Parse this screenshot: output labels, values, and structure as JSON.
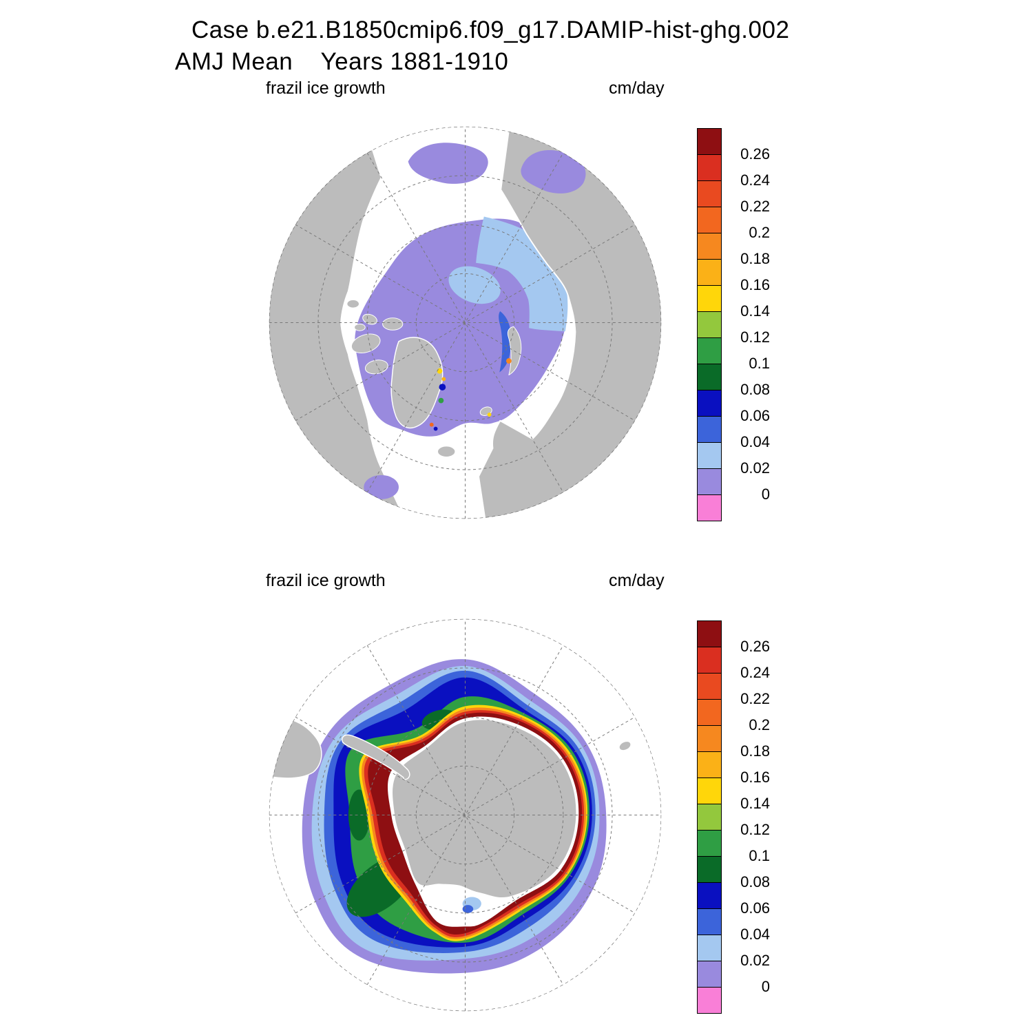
{
  "header": {
    "line1": "Case b.e21.B1850cmip6.f09_g17.DAMIP-hist-ghg.002",
    "line2": "AMJ Mean    Years 1881-1910"
  },
  "panels": {
    "north": {
      "variable_label": "frazil ice growth",
      "units_label": "cm/day"
    },
    "south": {
      "variable_label": "frazil ice growth",
      "units_label": "cm/day"
    }
  },
  "colorbar": {
    "units": "cm/day",
    "cells": [
      "v026",
      "v024",
      "v022",
      "v020",
      "v018",
      "v016",
      "v014",
      "v012",
      "v010",
      "v008",
      "v006",
      "v004",
      "v002",
      "v000",
      "below"
    ],
    "ticks": [
      "0.26",
      "0.24",
      "0.22",
      "0.2",
      "0.18",
      "0.16",
      "0.14",
      "0.12",
      "0.1",
      "0.08",
      "0.06",
      "0.04",
      "0.02",
      "0"
    ]
  },
  "palette": {
    "below": "#f97fd7",
    "v000": "#998ade",
    "v002": "#a4c8f0",
    "v004": "#3c64da",
    "v006": "#0a10c0",
    "v008": "#0a6b28",
    "v010": "#2f9e44",
    "v012": "#93c83d",
    "v014": "#ffd60a",
    "v016": "#fbb117",
    "v018": "#f6881f",
    "v020": "#f2671f",
    "v022": "#e94a20",
    "v024": "#da2f20",
    "v026": "#8e0f12",
    "land": "#bcbcbc",
    "coast": "#ffffff",
    "ocean": "#ffffff",
    "graticule": "#787878"
  },
  "chart_data": [
    {
      "type": "heatmap",
      "title": "frazil ice growth",
      "units": "cm/day",
      "hemisphere": "Northern",
      "projection": "north polar stereographic",
      "season": "AMJ",
      "years": "1881-1910",
      "case": "b.e21.B1850cmip6.f09_g17.DAMIP-hist-ghg.002",
      "contour_levels": [
        0,
        0.02,
        0.04,
        0.06,
        0.08,
        0.1,
        0.12,
        0.14,
        0.16,
        0.18,
        0.2,
        0.22,
        0.24,
        0.26
      ],
      "palette_low_to_high": [
        "#f97fd7",
        "#998ade",
        "#a4c8f0",
        "#3c64da",
        "#0a10c0",
        "#0a6b28",
        "#2f9e44",
        "#93c83d",
        "#ffd60a",
        "#fbb117",
        "#f6881f",
        "#f2671f",
        "#e94a20",
        "#da2f20",
        "#8e0f12"
      ],
      "legend_position": "right",
      "grid": "dashed polar graticule, 30-degree meridians",
      "features": [
        {
          "region": "central Arctic Ocean ice pack",
          "value_cm_per_day": "0 to 0.02"
        },
        {
          "region": "band on Siberian side of the pole and near-pole patch",
          "value_cm_per_day": "0.02 to 0.04"
        },
        {
          "region": "sliver in lee of Novaya Zemlya",
          "value_cm_per_day": "0.04 to 0.08"
        },
        {
          "region": "Bering Sea, Sea of Okhotsk, Hudson Bay, Baffin Bay",
          "value_cm_per_day": "0 to 0.02"
        },
        {
          "region": "isolated coastal spots along east Greenland and near Svalbard",
          "value_cm_per_day": "0.06 to 0.22"
        },
        {
          "region": "open North Atlantic and North Pacific",
          "value_cm_per_day": "none (white)"
        },
        {
          "region": "continents",
          "value_cm_per_day": "land mask (gray)"
        }
      ]
    },
    {
      "type": "heatmap",
      "title": "frazil ice growth",
      "units": "cm/day",
      "hemisphere": "Southern",
      "projection": "south polar stereographic",
      "season": "AMJ",
      "years": "1881-1910",
      "case": "b.e21.B1850cmip6.f09_g17.DAMIP-hist-ghg.002",
      "contour_levels": [
        0,
        0.02,
        0.04,
        0.06,
        0.08,
        0.1,
        0.12,
        0.14,
        0.16,
        0.18,
        0.2,
        0.22,
        0.24,
        0.26
      ],
      "palette_low_to_high": [
        "#f97fd7",
        "#998ade",
        "#a4c8f0",
        "#3c64da",
        "#0a10c0",
        "#0a6b28",
        "#2f9e44",
        "#93c83d",
        "#ffd60a",
        "#fbb117",
        "#f6881f",
        "#f2671f",
        "#e94a20",
        "#da2f20",
        "#8e0f12"
      ],
      "legend_position": "right",
      "grid": "dashed polar graticule, 30-degree meridians",
      "features": [
        {
          "region": "circumpolar band hugging the Antarctic coastline",
          "value_cm_per_day": "> 0.26 (dark red), widest in Ross/Amundsen and Weddell sectors"
        },
        {
          "region": "narrow rings just offshore of the coastal band",
          "value_cm_per_day": "0.14 to 0.26 (yellow-orange-red)"
        },
        {
          "region": "offshore green patches, largest in southwest sector and north of coast at top",
          "value_cm_per_day": "0.08 to 0.14"
        },
        {
          "region": "large navy lobe north of Weddell coast (top of map)",
          "value_cm_per_day": "0.06 to 0.08"
        },
        {
          "region": "mid ice pack",
          "value_cm_per_day": "0.04 to 0.08 (blues)"
        },
        {
          "region": "outer ice edge",
          "value_cm_per_day": "0 to 0.04 (light blue then purple)"
        },
        {
          "region": "ice-shelf notches at the coast (e.g., Ross)",
          "value_cm_per_day": "none (white)"
        },
        {
          "region": "open Southern Ocean beyond the ice edge, Patagonia and small islands",
          "value_cm_per_day": "none (white) / land mask (gray)"
        }
      ]
    }
  ]
}
